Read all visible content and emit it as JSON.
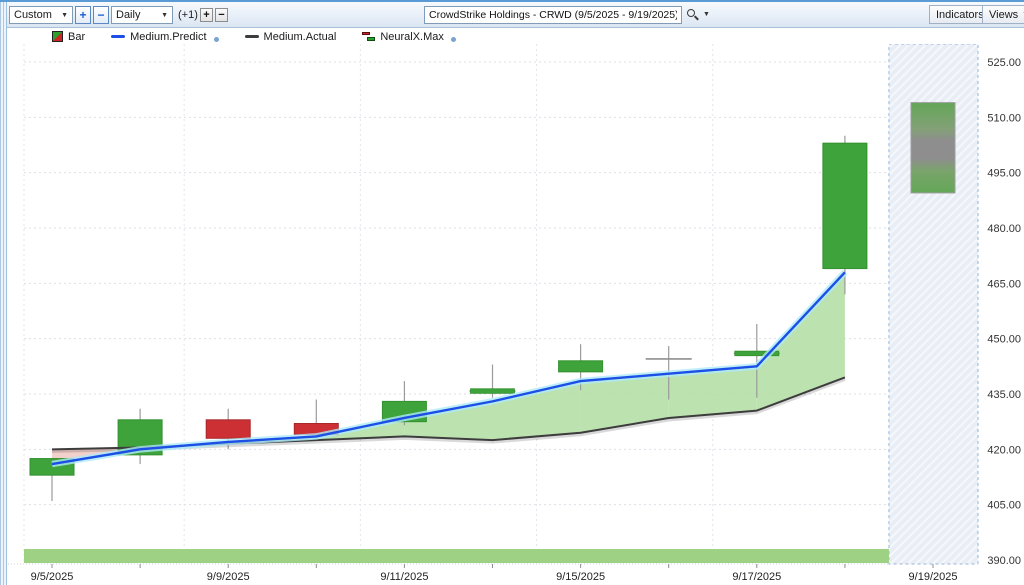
{
  "toolbar": {
    "range_value": "Custom",
    "zoom_in_label": "+",
    "zoom_out_label": "−",
    "period_value": "Daily",
    "offset_label": "(+1)",
    "bar_add_label": "+",
    "bar_remove_label": "−",
    "symbol_search_value": "CrowdStrike Holdings - CRWD (9/5/2025 - 9/19/2025)",
    "indicators_label": "Indicators",
    "views_label": "Views"
  },
  "legend": {
    "items": [
      {
        "label": "Bar",
        "icon": "bar-series-icon"
      },
      {
        "label": "Medium.Predict",
        "icon": "predict-line-icon",
        "color": "#1c4fe6",
        "has_dot": true
      },
      {
        "label": "Medium.Actual",
        "icon": "actual-line-icon",
        "color": "#3d3d3d",
        "has_dot": false
      },
      {
        "label": "NeuralX.Max",
        "icon": "neuralx-bars-icon",
        "has_dot": true
      }
    ]
  },
  "chart_data": {
    "type": "candlestick",
    "title": "CrowdStrike Holdings - CRWD",
    "date_range": "9/5/2025 - 9/19/2025",
    "ylim": [
      390,
      525
    ],
    "y_ticks": [
      525,
      510,
      495,
      480,
      465,
      450,
      435,
      420,
      405,
      390
    ],
    "x_tick_labels": [
      "9/5/2025",
      "9/9/2025",
      "9/11/2025",
      "9/15/2025",
      "9/17/2025",
      "9/19/2025"
    ],
    "x_tick_days": [
      0,
      2,
      4,
      6,
      8,
      10
    ],
    "days": [
      "9/5/2025",
      "9/8/2025",
      "9/9/2025",
      "9/10/2025",
      "9/11/2025",
      "9/12/2025",
      "9/15/2025",
      "9/16/2025",
      "9/17/2025",
      "9/18/2025"
    ],
    "candles": [
      {
        "date": "9/5/2025",
        "open": 413,
        "high": 417.5,
        "low": 406,
        "close": 417.5,
        "style": "green"
      },
      {
        "date": "9/8/2025",
        "open": 418.5,
        "high": 431,
        "low": 416,
        "close": 428,
        "style": "green"
      },
      {
        "date": "9/9/2025",
        "open": 428,
        "high": 431,
        "low": 420,
        "close": 423,
        "style": "red"
      },
      {
        "date": "9/10/2025",
        "open": 427,
        "high": 433.5,
        "low": 423,
        "close": 424,
        "style": "red"
      },
      {
        "date": "9/11/2025",
        "open": 427.5,
        "high": 438.5,
        "low": 426.5,
        "close": 433,
        "style": "green"
      },
      {
        "date": "9/12/2025",
        "open": 434.8,
        "high": 443,
        "low": 434,
        "close": 435.8,
        "style": "doji-green"
      },
      {
        "date": "9/15/2025",
        "open": 441,
        "high": 448.5,
        "low": 436,
        "close": 444,
        "style": "green"
      },
      {
        "date": "9/16/2025",
        "open": 444.5,
        "high": 448,
        "low": 433.5,
        "close": 444.5,
        "style": "doji-gray"
      },
      {
        "date": "9/17/2025",
        "open": 445.5,
        "high": 454,
        "low": 434,
        "close": 446,
        "style": "doji-green"
      },
      {
        "date": "9/18/2025",
        "open": 469,
        "high": 505,
        "low": 462,
        "close": 503,
        "style": "green"
      }
    ],
    "series": [
      {
        "name": "Medium.Predict",
        "color": "#1c4fe6",
        "values": [
          416,
          420,
          422,
          423.5,
          428.5,
          433,
          438.5,
          440.5,
          442.5,
          468
        ]
      },
      {
        "name": "Medium.Actual",
        "color": "#3d3d3d",
        "values": [
          420,
          420.5,
          421.5,
          422.5,
          423.5,
          422.5,
          424.5,
          428.5,
          430.5,
          439.5
        ]
      }
    ],
    "forecast": {
      "date": "9/19/2025",
      "name": "NeuralX.Max",
      "low": 489.5,
      "high": 514
    },
    "colors": {
      "candle_up": "#3da33a",
      "candle_up_border": "#33912f",
      "candle_down": "#cd3034",
      "candle_down_border": "#a82629",
      "wick": "#9b9b9b",
      "fill_predict_above": "#b5dfa6",
      "fill_actual_above": "#f1cbc7",
      "predict_glow": "#aeeaf8",
      "forecast_green": "#63a757",
      "forecast_gray": "#8e8e8e",
      "future_region_bg": "#e9eef6",
      "bottom_band": "#9ed184"
    }
  }
}
